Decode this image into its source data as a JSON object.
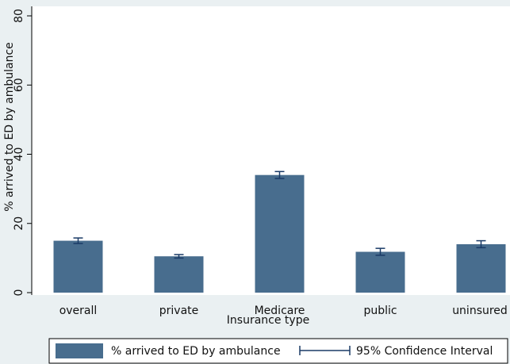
{
  "chart_data": {
    "type": "bar",
    "y_label": "% arrived to ED by ambulance",
    "x_label": "Insurance type",
    "categories": [
      "overall",
      "private",
      "Medicare",
      "public",
      "uninsured"
    ],
    "series": [
      {
        "name": "% arrived to ED by ambulance",
        "color": "#486d8e",
        "values": [
          15,
          10.5,
          34,
          11.8,
          14
        ],
        "errors": [
          0.8,
          0.5,
          1,
          1,
          1
        ]
      }
    ],
    "error_label": "95% Confidence Interval",
    "ylim": [
      0,
      80
    ],
    "yticks": [
      0,
      20,
      40,
      60,
      80
    ]
  }
}
